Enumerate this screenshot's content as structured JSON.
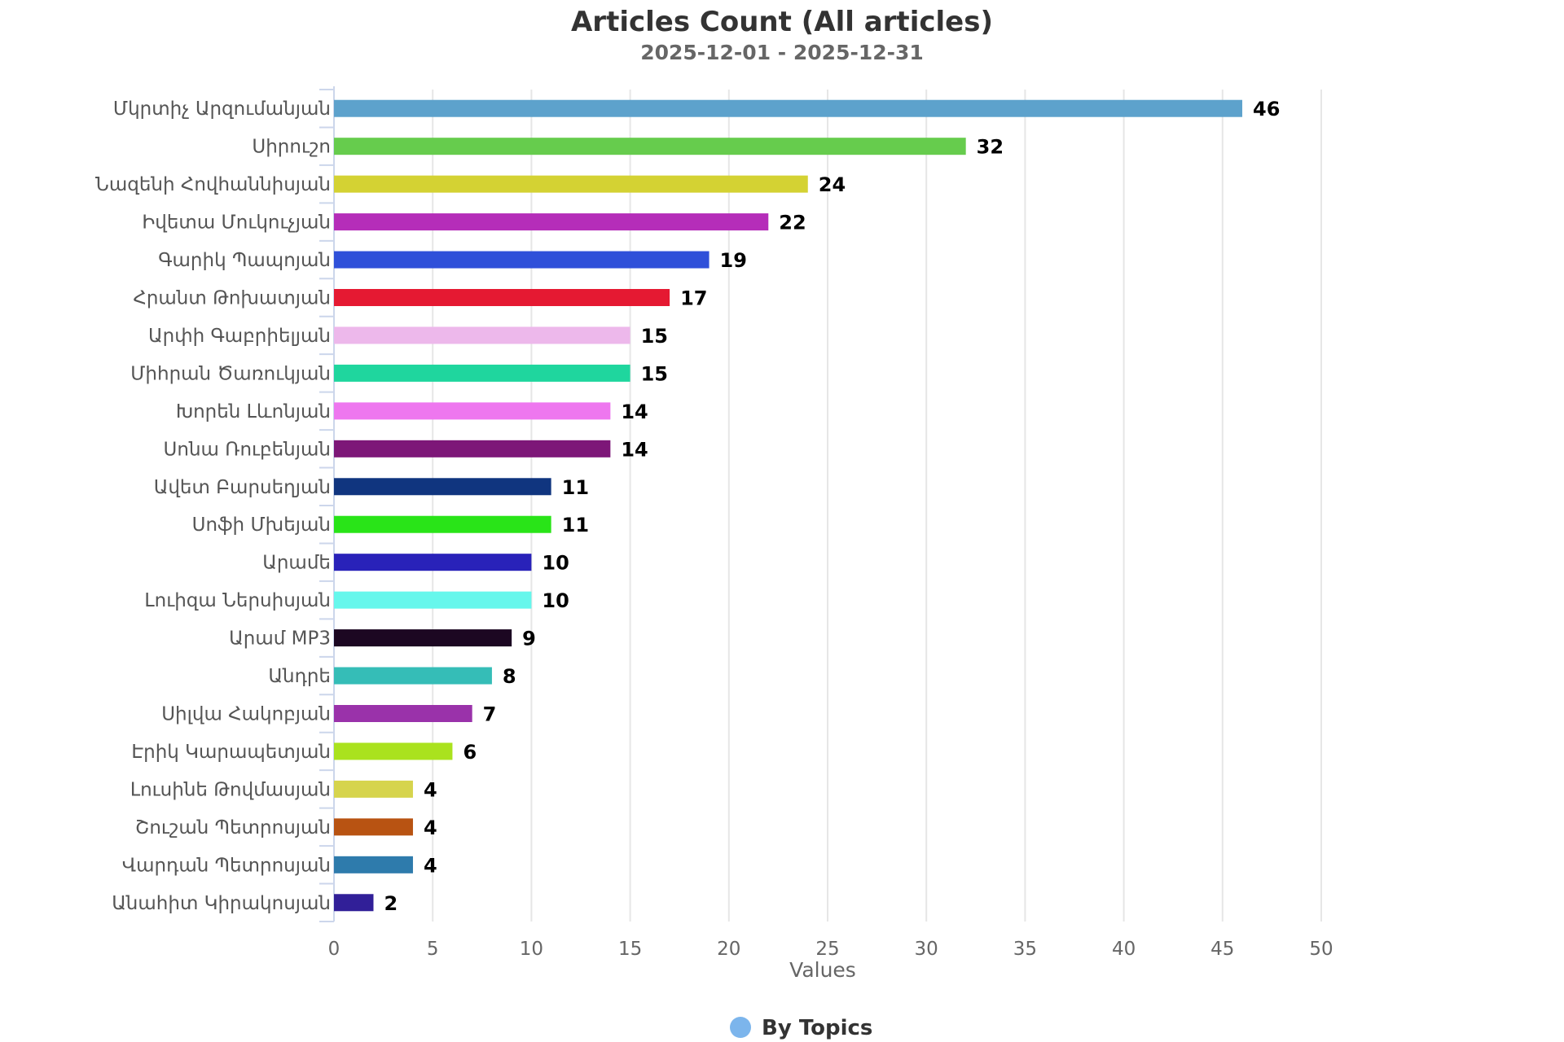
{
  "chart_data": {
    "type": "bar",
    "orientation": "horizontal",
    "title": "Articles Count (All articles)",
    "subtitle": "2025-12-01 - 2025-12-31",
    "xlabel": "Values",
    "ylabel": "",
    "xlim": [
      0,
      50
    ],
    "x_ticks": [
      0,
      5,
      10,
      15,
      20,
      25,
      30,
      35,
      40,
      45,
      50
    ],
    "grid": "vertical",
    "legend": {
      "position": "bottom-center",
      "entries": [
        {
          "name": "By Topics",
          "color": "#7cb5ec"
        }
      ]
    },
    "series": [
      {
        "name": "By Topics"
      }
    ],
    "categories": [
      "Մկրտիչ Արզումանյան",
      "Սիրուշո",
      "Նազենի Հովհաննիսյան",
      "Իվետա Մուկուչյան",
      "Գարիկ Պապոյան",
      "Հրանտ Թոխատյան",
      "Արփի Գաբրիելյան",
      "Միհրան Ծառուկյան",
      "Խորեն Լևոնյան",
      "Սոնա Ռուբենյան",
      "Ավետ Բարսեղյան",
      "Սոֆի Մխեյան",
      "Արամե",
      "Լուիզա Ներսիսյան",
      "Արամ MP3",
      "Անդրե",
      "Սիլվա Հակոբյան",
      "Էրիկ Կարապետյան",
      "Լուսինե Թովմասյան",
      "Շուշան Պետրոսյան",
      "Վարդան Պետրոսյան",
      "Անահիտ Կիրակոսյան"
    ],
    "values": [
      46,
      32,
      24,
      22,
      19,
      17,
      15,
      15,
      14,
      14,
      11,
      11,
      10,
      10,
      9,
      8,
      7,
      6,
      4,
      4,
      4,
      2
    ],
    "colors": [
      "#5da2cc",
      "#66cc4d",
      "#d4d233",
      "#b52db9",
      "#2f50d9",
      "#e51932",
      "#edb8eb",
      "#1fd69e",
      "#ee77ef",
      "#7d1778",
      "#10357f",
      "#29e418",
      "#2922b9",
      "#66f7ec",
      "#1c0722",
      "#35bdb7",
      "#9a32aa",
      "#aae21e",
      "#d6d44d",
      "#b85312",
      "#2e7bac",
      "#311f98"
    ]
  }
}
